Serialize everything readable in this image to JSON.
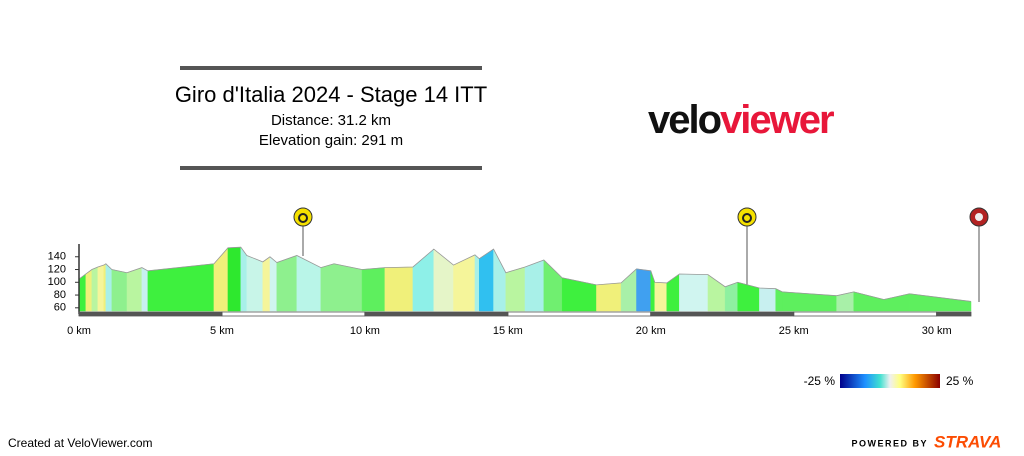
{
  "chart_data": {
    "type": "elevation-profile",
    "title": "Giro d'Italia 2024 - Stage 14 ITT",
    "subtitle": [
      "Distance: 31.2 km",
      "Elevation gain: 291 m"
    ],
    "x": [
      0,
      0.24,
      0.45,
      0.66,
      0.87,
      0.94,
      1.15,
      1.68,
      2.2,
      2.41,
      4.72,
      5.21,
      5.66,
      5.87,
      6.43,
      6.68,
      6.92,
      7.62,
      8.46,
      8.92,
      9.9,
      10.7,
      11.68,
      12.41,
      13.1,
      13.85,
      14.0,
      14.5,
      14.93,
      15.6,
      16.26,
      16.9,
      18.1,
      18.96,
      19.5,
      20.0,
      20.14,
      20.56,
      21.0,
      22.0,
      22.6,
      23.04,
      23.8,
      24.37,
      24.6,
      26.5,
      27.1,
      28.15,
      29.05,
      31.2
    ],
    "values": [
      105,
      113,
      120,
      124,
      127,
      129,
      120,
      115,
      123,
      118,
      129,
      154,
      155,
      142,
      132,
      140,
      131,
      142,
      123,
      129,
      120,
      123,
      124,
      152,
      127,
      143,
      137,
      152,
      115,
      124,
      135,
      107,
      96,
      99,
      121,
      118,
      100,
      99,
      113,
      112,
      93,
      100,
      91,
      90,
      85,
      79,
      85,
      73,
      82,
      70
    ],
    "segment_colors": [
      "#3df03d",
      "#f0f07a",
      "#b9f5a0",
      "#f5f59a",
      "#f0f07a",
      "#a8f0e8",
      "#8ef08e",
      "#b9f5a0",
      "#c8f0f0",
      "#3ef03e",
      "#f0f07a",
      "#2ee82e",
      "#a8f0e8",
      "#c8f5e8",
      "#f5f59a",
      "#d0f5f0",
      "#8ef08e",
      "#b9f5e8",
      "#8ef08e",
      "#8ef08e",
      "#5eef5e",
      "#f0f07a",
      "#8ef0e8",
      "#e5f5c8",
      "#f5f59a",
      "#a8f0e8",
      "#30c0f0",
      "#a8f0e8",
      "#b9f5a0",
      "#a8f0e8",
      "#70ef70",
      "#3ef03e",
      "#f0f07a",
      "#a8f0a8",
      "#40a0f0",
      "#3ef03e",
      "#f5f59a",
      "#3ef03e",
      "#d0f5f0",
      "#b9f5a0",
      "#8ef0a0",
      "#3ef03e",
      "#c8f0f0",
      "#5eef5e",
      "#5eef5e",
      "#a8f0a8",
      "#5eef5e",
      "#5eef5e",
      "#5eef5e"
    ],
    "xlim": [
      0,
      31.2
    ],
    "ylim": [
      55,
      160
    ],
    "yticks": [
      60,
      80,
      100,
      120,
      140
    ],
    "xticks": [
      {
        "value": 0,
        "label": "0 km"
      },
      {
        "value": 5,
        "label": "5 km"
      },
      {
        "value": 10,
        "label": "10 km"
      },
      {
        "value": 15,
        "label": "15 km"
      },
      {
        "value": 20,
        "label": "20 km"
      },
      {
        "value": 25,
        "label": "25 km"
      },
      {
        "value": 30,
        "label": "30 km"
      }
    ],
    "gradient_legend": {
      "min_label": "-25 %",
      "max_label": "25 %"
    }
  },
  "logo": {
    "part1": "velo",
    "part2": "viewer"
  },
  "footer": {
    "credit": "Created at VeloViewer.com",
    "powered": "POWERED BY",
    "brand": "STRAVA"
  }
}
